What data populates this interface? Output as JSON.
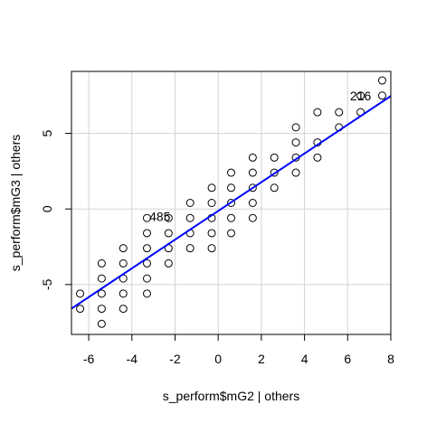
{
  "chart_data": {
    "type": "scatter",
    "title": "",
    "xlabel": "s_perform$mG2 | others",
    "ylabel": "s_perform$mG3  | others",
    "xlim": [
      -6.8,
      8.0
    ],
    "ylim": [
      -8.3,
      9.1
    ],
    "xticks": [
      -6,
      -4,
      -2,
      0,
      2,
      4,
      6,
      8
    ],
    "yticks": [
      -5,
      0,
      5
    ],
    "grid": true,
    "point_color": "#000000",
    "line_color": "#0000ff",
    "grid_color": "#d3d3d3",
    "fit_line": {
      "slope": 0.95,
      "intercept": -0.13
    },
    "annotations": [
      {
        "text": "485",
        "x": -2.7,
        "y": -0.5
      },
      {
        "text": "216",
        "x": 6.6,
        "y": 7.5
      }
    ],
    "points": [
      [
        -6.4,
        -5.6
      ],
      [
        -6.4,
        -6.6
      ],
      [
        -5.4,
        -3.6
      ],
      [
        -5.4,
        -4.6
      ],
      [
        -5.4,
        -5.6
      ],
      [
        -5.4,
        -6.6
      ],
      [
        -5.4,
        -7.6
      ],
      [
        -4.4,
        -2.6
      ],
      [
        -4.4,
        -3.6
      ],
      [
        -4.4,
        -4.6
      ],
      [
        -4.4,
        -5.6
      ],
      [
        -4.4,
        -6.6
      ],
      [
        -3.3,
        -0.6
      ],
      [
        -3.3,
        -1.6
      ],
      [
        -3.3,
        -2.6
      ],
      [
        -3.3,
        -3.6
      ],
      [
        -3.3,
        -4.6
      ],
      [
        -3.3,
        -5.6
      ],
      [
        -2.3,
        -0.6
      ],
      [
        -2.3,
        -1.6
      ],
      [
        -2.3,
        -2.6
      ],
      [
        -2.3,
        -3.6
      ],
      [
        -1.3,
        0.4
      ],
      [
        -1.3,
        -0.6
      ],
      [
        -1.3,
        -1.6
      ],
      [
        -1.3,
        -2.6
      ],
      [
        -0.3,
        1.4
      ],
      [
        -0.3,
        0.4
      ],
      [
        -0.3,
        -0.6
      ],
      [
        -0.3,
        -1.6
      ],
      [
        -0.3,
        -2.6
      ],
      [
        0.6,
        2.4
      ],
      [
        0.6,
        1.4
      ],
      [
        0.6,
        0.4
      ],
      [
        0.6,
        -0.6
      ],
      [
        0.6,
        -1.6
      ],
      [
        1.6,
        3.4
      ],
      [
        1.6,
        2.4
      ],
      [
        1.6,
        1.4
      ],
      [
        1.6,
        0.4
      ],
      [
        1.6,
        -0.6
      ],
      [
        2.6,
        3.4
      ],
      [
        2.6,
        2.4
      ],
      [
        2.6,
        1.4
      ],
      [
        3.6,
        5.4
      ],
      [
        3.6,
        4.4
      ],
      [
        3.6,
        3.4
      ],
      [
        3.6,
        2.4
      ],
      [
        4.6,
        6.4
      ],
      [
        4.6,
        4.4
      ],
      [
        4.6,
        3.4
      ],
      [
        5.6,
        6.4
      ],
      [
        5.6,
        5.4
      ],
      [
        6.6,
        7.5
      ],
      [
        6.6,
        6.4
      ],
      [
        7.6,
        8.5
      ],
      [
        7.6,
        7.5
      ]
    ]
  }
}
